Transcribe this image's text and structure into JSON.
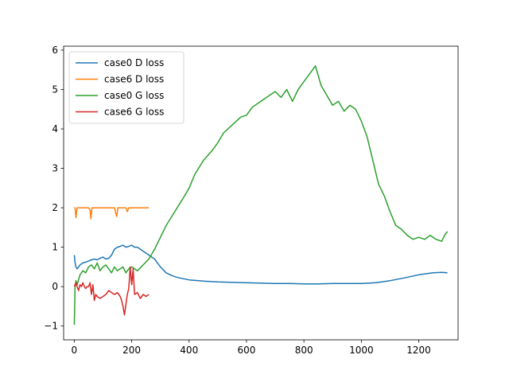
{
  "chart_data": {
    "type": "line",
    "title": "",
    "xlabel": "",
    "ylabel": "",
    "xlim": [
      -37,
      1337
    ],
    "ylim": [
      -1.35,
      6.1
    ],
    "xticks": [
      0,
      200,
      400,
      600,
      800,
      1000,
      1200
    ],
    "yticks": [
      -1,
      0,
      1,
      2,
      3,
      4,
      5,
      6
    ],
    "grid": false,
    "legend_position": "top-left",
    "series": [
      {
        "name": "case0 D loss",
        "color": "#1f77b4",
        "x": [
          0,
          3,
          6,
          10,
          15,
          20,
          30,
          40,
          50,
          60,
          70,
          80,
          90,
          100,
          110,
          120,
          130,
          140,
          150,
          160,
          170,
          180,
          190,
          200,
          210,
          220,
          230,
          240,
          250,
          260,
          270,
          280,
          290,
          300,
          320,
          340,
          360,
          380,
          400,
          450,
          500,
          550,
          600,
          650,
          700,
          750,
          800,
          850,
          900,
          950,
          1000,
          1050,
          1100,
          1150,
          1200,
          1250,
          1280,
          1300
        ],
        "y": [
          0.8,
          0.6,
          0.5,
          0.45,
          0.5,
          0.55,
          0.6,
          0.62,
          0.65,
          0.68,
          0.7,
          0.68,
          0.72,
          0.75,
          0.7,
          0.72,
          0.8,
          0.95,
          1.0,
          1.02,
          1.05,
          1.0,
          1.02,
          1.05,
          1.0,
          1.0,
          0.95,
          0.9,
          0.85,
          0.8,
          0.75,
          0.7,
          0.6,
          0.5,
          0.35,
          0.28,
          0.23,
          0.2,
          0.17,
          0.14,
          0.12,
          0.11,
          0.1,
          0.09,
          0.08,
          0.08,
          0.07,
          0.07,
          0.08,
          0.08,
          0.08,
          0.1,
          0.15,
          0.22,
          0.3,
          0.35,
          0.36,
          0.35
        ]
      },
      {
        "name": "case6 D loss",
        "color": "#ff7f0e",
        "x": [
          0,
          3,
          6,
          10,
          15,
          20,
          30,
          40,
          50,
          55,
          58,
          62,
          70,
          80,
          90,
          100,
          110,
          120,
          130,
          140,
          145,
          148,
          152,
          160,
          170,
          180,
          185,
          190,
          200,
          210,
          220,
          230,
          240,
          250,
          260
        ],
        "y": [
          2.0,
          2.0,
          1.75,
          2.0,
          2.0,
          2.0,
          2.0,
          2.0,
          2.0,
          1.95,
          1.72,
          2.0,
          2.0,
          2.0,
          2.0,
          2.0,
          2.0,
          2.0,
          2.0,
          2.0,
          1.85,
          1.78,
          2.0,
          2.0,
          2.0,
          2.0,
          1.9,
          2.0,
          2.0,
          2.0,
          2.0,
          2.0,
          2.0,
          2.0,
          2.0
        ]
      },
      {
        "name": "case0 G loss",
        "color": "#2ca02c",
        "x": [
          0,
          3,
          6,
          10,
          20,
          30,
          40,
          50,
          60,
          70,
          80,
          90,
          100,
          110,
          120,
          130,
          140,
          150,
          160,
          170,
          180,
          190,
          200,
          220,
          240,
          260,
          280,
          300,
          320,
          350,
          380,
          400,
          420,
          450,
          480,
          500,
          520,
          550,
          580,
          600,
          620,
          650,
          680,
          700,
          720,
          740,
          760,
          780,
          800,
          820,
          840,
          860,
          880,
          900,
          920,
          940,
          960,
          980,
          1000,
          1020,
          1040,
          1060,
          1080,
          1100,
          1120,
          1140,
          1160,
          1180,
          1200,
          1220,
          1240,
          1260,
          1280,
          1290,
          1300
        ],
        "y": [
          -0.97,
          0.0,
          0.15,
          0.05,
          0.3,
          0.4,
          0.35,
          0.5,
          0.55,
          0.45,
          0.6,
          0.4,
          0.5,
          0.55,
          0.45,
          0.35,
          0.5,
          0.4,
          0.45,
          0.5,
          0.35,
          0.45,
          0.5,
          0.4,
          0.55,
          0.7,
          0.95,
          1.25,
          1.55,
          1.9,
          2.25,
          2.5,
          2.85,
          3.2,
          3.45,
          3.65,
          3.9,
          4.1,
          4.3,
          4.35,
          4.55,
          4.7,
          4.85,
          4.95,
          4.8,
          5.0,
          4.7,
          5.0,
          5.2,
          5.4,
          5.6,
          5.1,
          4.85,
          4.6,
          4.7,
          4.45,
          4.6,
          4.5,
          4.2,
          3.8,
          3.2,
          2.6,
          2.3,
          1.9,
          1.55,
          1.45,
          1.3,
          1.2,
          1.25,
          1.2,
          1.3,
          1.2,
          1.15,
          1.3,
          1.4
        ]
      },
      {
        "name": "case6 G loss",
        "color": "#d62728",
        "x": [
          0,
          3,
          6,
          10,
          15,
          20,
          25,
          30,
          35,
          40,
          45,
          50,
          55,
          60,
          65,
          70,
          75,
          80,
          90,
          100,
          110,
          120,
          130,
          140,
          150,
          160,
          165,
          170,
          175,
          180,
          185,
          190,
          195,
          200,
          205,
          210,
          220,
          230,
          240,
          250,
          260
        ],
        "y": [
          0.0,
          0.05,
          0.1,
          0.0,
          -0.1,
          0.05,
          0.0,
          0.1,
          0.0,
          -0.05,
          0.0,
          0.0,
          0.1,
          -0.2,
          0.05,
          -0.35,
          -0.2,
          -0.25,
          -0.3,
          -0.25,
          -0.2,
          -0.1,
          -0.15,
          -0.2,
          -0.15,
          -0.25,
          -0.35,
          -0.5,
          -0.72,
          -0.45,
          -0.2,
          -0.05,
          0.5,
          0.05,
          0.45,
          -0.2,
          -0.15,
          -0.3,
          -0.2,
          -0.25,
          -0.2
        ]
      }
    ]
  }
}
